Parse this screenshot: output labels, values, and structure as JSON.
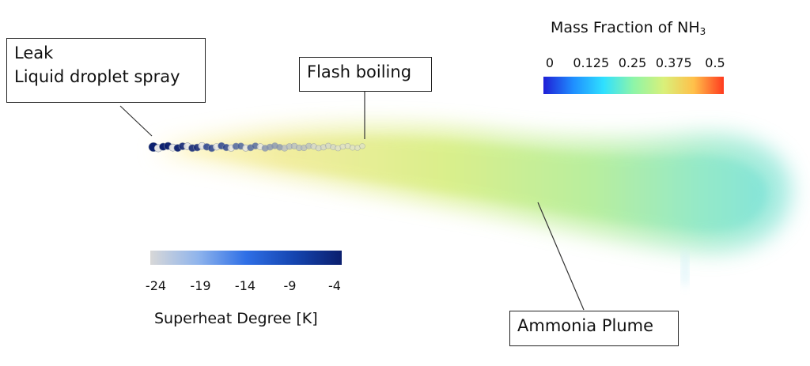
{
  "callouts": {
    "leak": {
      "line1": "Leak",
      "line2": "Liquid droplet spray"
    },
    "flash": {
      "label": "Flash boiling"
    },
    "plume": {
      "label": "Ammonia Plume"
    }
  },
  "mass_fraction_legend": {
    "title_prefix": "Mass Fraction of NH",
    "title_subscript": "3",
    "ticks": [
      "0",
      "0.125",
      "0.25",
      "0.375",
      "0.5"
    ],
    "range": [
      0,
      0.5
    ],
    "colors": [
      "#1f1fd6",
      "#1f8fff",
      "#2fe0ff",
      "#8ef5a8",
      "#d9f07a",
      "#ffc04a",
      "#ff3b1f"
    ]
  },
  "superheat_legend": {
    "title": "Superheat Degree [K]",
    "ticks": [
      "-24",
      "-19",
      "-14",
      "-9",
      "-4"
    ],
    "range": [
      -24,
      -4
    ],
    "colors": [
      "#d8d8d8",
      "#8fb4ec",
      "#2f6fe6",
      "#1545b0",
      "#0b1f6e"
    ]
  }
}
